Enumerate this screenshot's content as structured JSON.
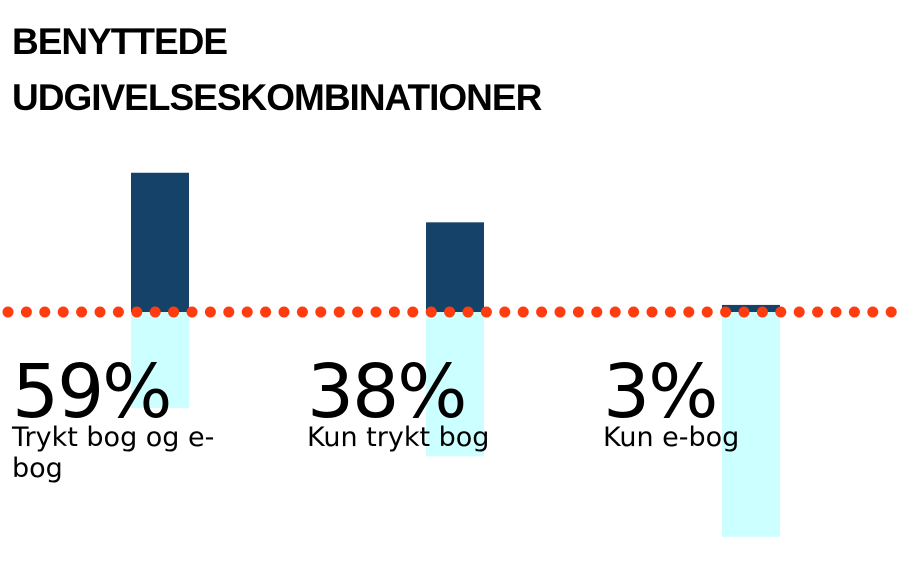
{
  "title_lines": [
    "BENYTTEDE",
    "UDGIVELSESKOMBINATIONER"
  ],
  "colors": {
    "bar_above": "#154268",
    "bar_below": "#ccffff",
    "dotted_line": "#ff3b10",
    "text": "#000000"
  },
  "chart_data": {
    "type": "bar",
    "title": "BENYTTEDE UDGIVELSESKOMBINATIONER",
    "categories": [
      "Trykt bog og e-bog",
      "Kun trykt bog",
      "Kun e-bog"
    ],
    "values": [
      59,
      38,
      3
    ],
    "value_labels": [
      "59%",
      "38%",
      "3%"
    ],
    "unit": "%",
    "xlabel": "",
    "ylabel": "",
    "grid": false,
    "legend": "none"
  }
}
